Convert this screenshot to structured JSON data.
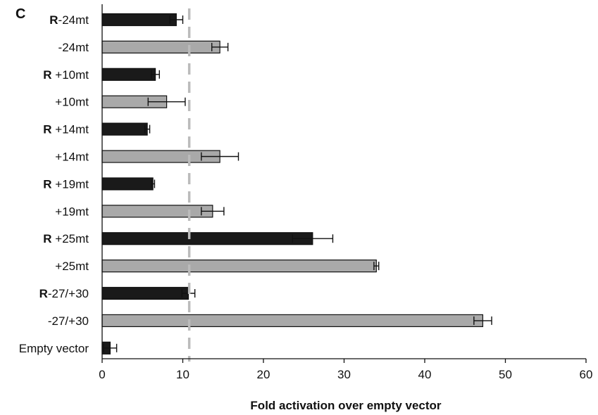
{
  "chart_data": {
    "type": "bar",
    "orientation": "horizontal",
    "panel_label": "C",
    "xlabel": "Fold activation over empty vector",
    "ylabel": "",
    "xlim": [
      0,
      60
    ],
    "xticks": [
      0,
      10,
      20,
      30,
      40,
      50,
      60
    ],
    "reference_line": {
      "x": 10.8,
      "style": "dashed",
      "color": "#bbbbbb"
    },
    "colors": {
      "R": "#1a1a1a",
      "plain": "#a9a9a9",
      "edge": "#111111"
    },
    "categories": [
      {
        "prefix": "R",
        "label": "-24mt",
        "value": 9.2,
        "error": 0.8,
        "group": "R"
      },
      {
        "prefix": "",
        "label": "-24mt",
        "value": 14.6,
        "error": 1.0,
        "group": "plain"
      },
      {
        "prefix": "R",
        "label": "+10mt",
        "value": 6.6,
        "error": 0.5,
        "group": "R"
      },
      {
        "prefix": "",
        "label": "+10mt",
        "value": 8.0,
        "error": 2.3,
        "group": "plain"
      },
      {
        "prefix": "R",
        "label": "+14mt",
        "value": 5.6,
        "error": 0.3,
        "group": "R"
      },
      {
        "prefix": "",
        "label": "+14mt",
        "value": 14.6,
        "error": 2.3,
        "group": "plain"
      },
      {
        "prefix": "R",
        "label": "+19mt",
        "value": 6.3,
        "error": 0.2,
        "group": "R"
      },
      {
        "prefix": "",
        "label": "+19mt",
        "value": 13.7,
        "error": 1.4,
        "group": "plain"
      },
      {
        "prefix": "R",
        "label": "+25mt",
        "value": 26.1,
        "error": 2.5,
        "group": "R"
      },
      {
        "prefix": "",
        "label": "+25mt",
        "value": 34.0,
        "error": 0.3,
        "group": "plain"
      },
      {
        "prefix": "R",
        "label": "-27/+30",
        "value": 10.7,
        "error": 0.8,
        "group": "R"
      },
      {
        "prefix": "",
        "label": "-27/+30",
        "value": 47.2,
        "error": 1.1,
        "group": "plain"
      },
      {
        "prefix": "",
        "label": "Empty vector",
        "value": 1.0,
        "error": 0.8,
        "group": "R"
      }
    ]
  }
}
